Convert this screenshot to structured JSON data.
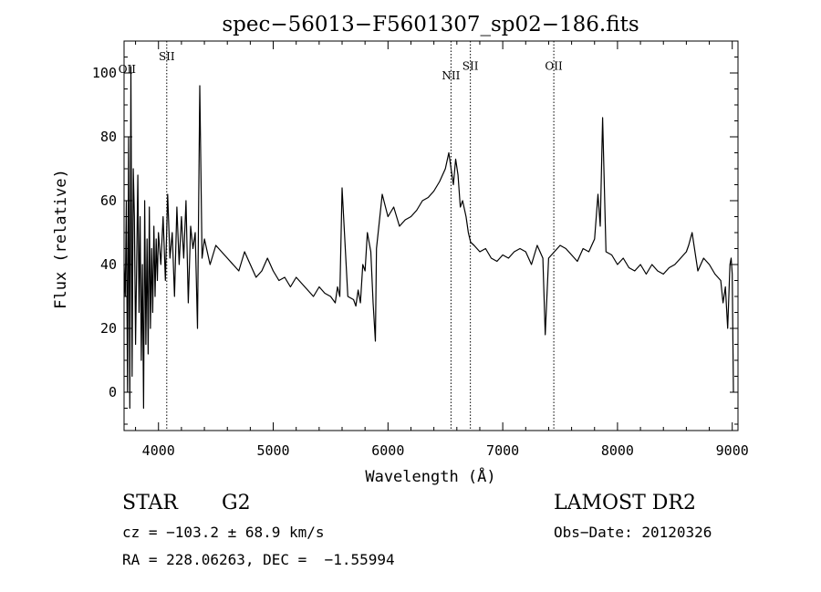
{
  "chart_data": {
    "type": "line",
    "title": "spec−56013−F5601307_sp02−186.fits",
    "xlabel": "Wavelength (Å)",
    "ylabel": "Flux (relative)",
    "xlim": [
      3700,
      9050
    ],
    "ylim": [
      -12,
      110
    ],
    "x_ticks": [
      4000,
      5000,
      6000,
      7000,
      8000,
      9000
    ],
    "y_ticks": [
      0,
      20,
      40,
      60,
      80,
      100
    ],
    "grid": false,
    "line_color": "#000000",
    "series": [
      {
        "x": [
          3700,
          3710,
          3720,
          3730,
          3740,
          3750,
          3760,
          3770,
          3780,
          3790,
          3800,
          3810,
          3820,
          3830,
          3840,
          3850,
          3860,
          3870,
          3880,
          3890,
          3900,
          3910,
          3920,
          3930,
          3940,
          3950,
          3960,
          3970,
          3980,
          3990,
          4000,
          4020,
          4040,
          4060,
          4080,
          4100,
          4120,
          4140,
          4160,
          4180,
          4200,
          4220,
          4240,
          4260,
          4280,
          4300,
          4320,
          4340,
          4360,
          4380,
          4400,
          4450,
          4500,
          4550,
          4600,
          4650,
          4700,
          4750,
          4800,
          4850,
          4900,
          4950,
          5000,
          5050,
          5100,
          5150,
          5200,
          5250,
          5300,
          5350,
          5400,
          5450,
          5500,
          5540,
          5560,
          5580,
          5600,
          5650,
          5700,
          5720,
          5740,
          5760,
          5780,
          5800,
          5820,
          5850,
          5870,
          5890,
          5900,
          5920,
          5950,
          6000,
          6050,
          6100,
          6150,
          6200,
          6250,
          6300,
          6350,
          6400,
          6450,
          6500,
          6530,
          6550,
          6570,
          6590,
          6610,
          6630,
          6650,
          6680,
          6700,
          6720,
          6750,
          6800,
          6850,
          6900,
          6950,
          7000,
          7050,
          7100,
          7150,
          7200,
          7250,
          7300,
          7350,
          7370,
          7400,
          7450,
          7500,
          7550,
          7600,
          7650,
          7700,
          7750,
          7800,
          7830,
          7850,
          7870,
          7900,
          7950,
          8000,
          8050,
          8100,
          8150,
          8200,
          8250,
          8300,
          8350,
          8400,
          8450,
          8500,
          8550,
          8600,
          8620,
          8650,
          8700,
          8750,
          8800,
          8850,
          8900,
          8920,
          8940,
          8960,
          8980,
          8990,
          9000,
          9010
        ],
        "y": [
          40,
          30,
          60,
          0,
          80,
          -5,
          102,
          5,
          70,
          55,
          15,
          40,
          68,
          25,
          55,
          10,
          40,
          -5,
          60,
          15,
          48,
          12,
          58,
          20,
          45,
          25,
          52,
          30,
          48,
          35,
          50,
          40,
          55,
          35,
          62,
          42,
          50,
          30,
          58,
          40,
          55,
          42,
          60,
          28,
          52,
          45,
          50,
          20,
          96,
          42,
          48,
          40,
          46,
          44,
          42,
          40,
          38,
          44,
          40,
          36,
          38,
          42,
          38,
          35,
          36,
          33,
          36,
          34,
          32,
          30,
          33,
          31,
          30,
          28,
          33,
          30,
          64,
          30,
          29,
          27,
          32,
          28,
          40,
          38,
          50,
          44,
          28,
          16,
          45,
          52,
          62,
          55,
          58,
          52,
          54,
          55,
          57,
          60,
          61,
          63,
          66,
          70,
          75,
          70,
          65,
          73,
          68,
          58,
          60,
          55,
          50,
          47,
          46,
          44,
          45,
          42,
          41,
          43,
          42,
          44,
          45,
          44,
          40,
          46,
          42,
          18,
          42,
          44,
          46,
          45,
          43,
          41,
          45,
          44,
          48,
          62,
          52,
          86,
          44,
          43,
          40,
          42,
          39,
          38,
          40,
          37,
          40,
          38,
          37,
          39,
          40,
          42,
          44,
          46,
          50,
          38,
          42,
          40,
          37,
          35,
          28,
          33,
          20,
          40,
          42,
          37,
          0
        ]
      }
    ],
    "annotations": [
      {
        "label": "OII",
        "x": 3727,
        "y": 100,
        "line": false
      },
      {
        "label": "SII",
        "x": 4072,
        "y": 104,
        "line": true
      },
      {
        "label": "NII",
        "x": 6549,
        "y": 98,
        "line": true
      },
      {
        "label": "SII",
        "x": 6718,
        "y": 101,
        "line": true
      },
      {
        "label": "OII",
        "x": 7445,
        "y": 101,
        "line": true
      }
    ]
  },
  "info": {
    "object_class": "STAR",
    "subclass": "G2",
    "survey": "LAMOST DR2",
    "redshift_line": "cz = −103.2 ± 68.9 km/s",
    "obs_date": "Obs−Date: 20120326",
    "coords": "RA = 228.06263, DEC =  −1.55994"
  }
}
